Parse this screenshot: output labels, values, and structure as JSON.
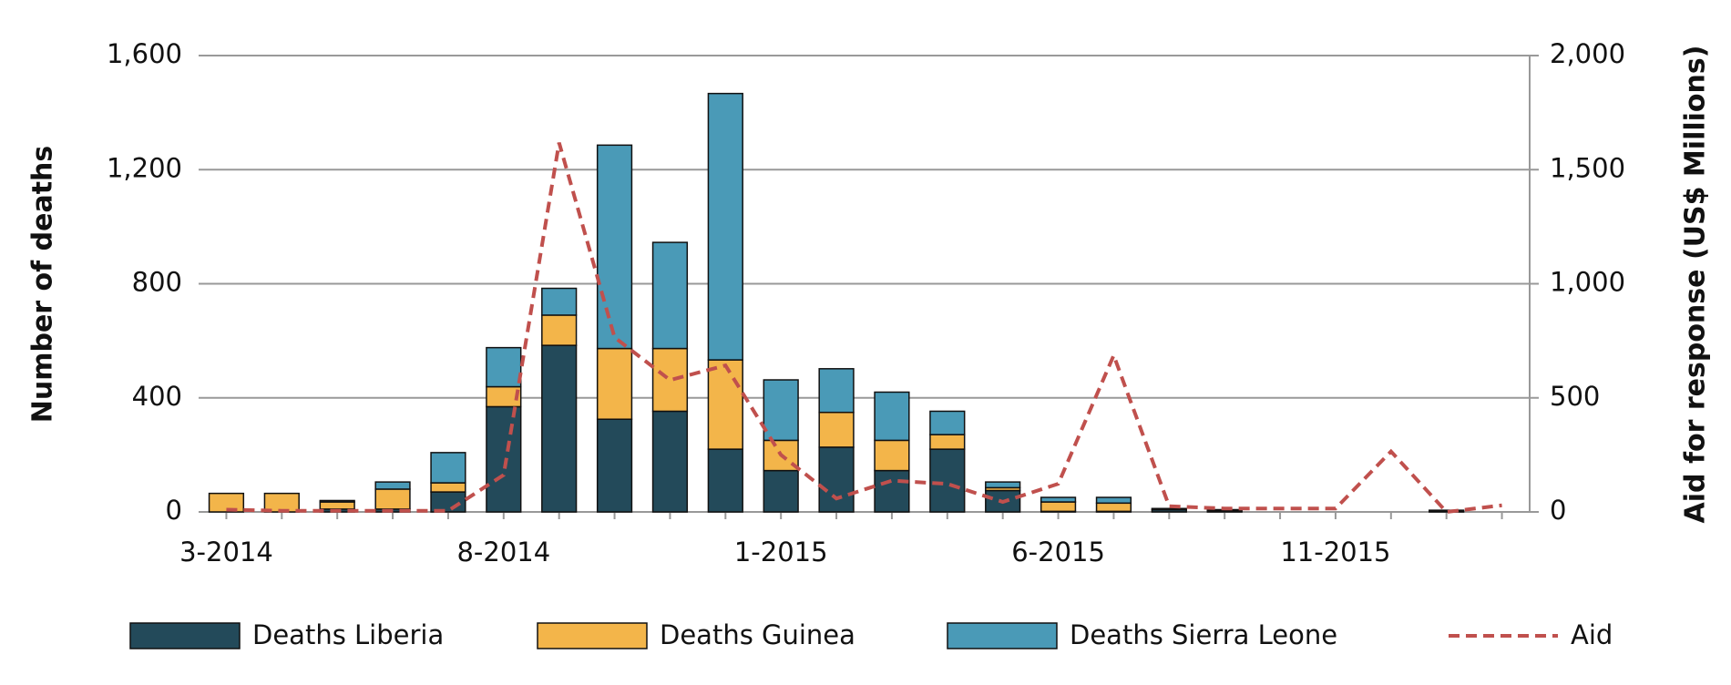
{
  "chart_data": {
    "type": "bar",
    "ylabel": "Number of deaths",
    "y2label": "Aid for response (US$ Millions)",
    "categories": [
      "3-2014",
      null,
      null,
      null,
      null,
      "8-2014",
      null,
      null,
      null,
      null,
      "1-2015",
      null,
      null,
      null,
      null,
      "6-2015",
      null,
      null,
      null,
      null,
      "11-2015",
      null,
      null,
      null
    ],
    "series": [
      {
        "name": "Deaths Liberia",
        "color": "#234a5a",
        "stacked": true,
        "values": [
          0,
          0,
          10,
          10,
          70,
          369,
          584,
          325,
          353,
          220,
          145,
          227,
          145,
          220,
          75,
          2,
          2,
          8,
          2,
          0,
          0,
          0,
          4,
          0
        ]
      },
      {
        "name": "Deaths Guinea",
        "color": "#f3b54a",
        "stacked": true,
        "values": [
          65,
          65,
          25,
          70,
          32,
          70,
          106,
          248,
          220,
          313,
          106,
          122,
          106,
          51,
          10,
          33,
          29,
          4,
          4,
          0,
          0,
          0,
          0,
          0
        ]
      },
      {
        "name": "Deaths Sierra Leone",
        "color": "#4a9ab7",
        "stacked": true,
        "values": [
          0,
          0,
          5,
          25,
          106,
          137,
          94,
          713,
          372,
          934,
          212,
          153,
          169,
          82,
          20,
          16,
          20,
          0,
          2,
          0,
          0,
          0,
          2,
          0
        ]
      },
      {
        "name": "Aid",
        "color": "#c0504d",
        "type": "line",
        "dashed": true,
        "axis": "y2",
        "values": [
          10,
          5,
          5,
          5,
          5,
          162,
          1618,
          765,
          578,
          642,
          250,
          59,
          137,
          123,
          44,
          123,
          686,
          25,
          15,
          15,
          15,
          265,
          0,
          29
        ]
      }
    ],
    "ylim": [
      0,
      1600
    ],
    "yticks": [
      0,
      400,
      800,
      {
        "value": 1200,
        "label": "1,200"
      },
      {
        "value": 1600,
        "label": "1,600"
      }
    ],
    "y2lim": [
      0,
      2000
    ],
    "y2ticks": [
      0,
      500,
      {
        "value": 1000,
        "label": "1,000"
      },
      {
        "value": 1500,
        "label": "1,500"
      },
      {
        "value": 2000,
        "label": "2,000"
      }
    ],
    "grid": true,
    "legend": "bottom"
  }
}
